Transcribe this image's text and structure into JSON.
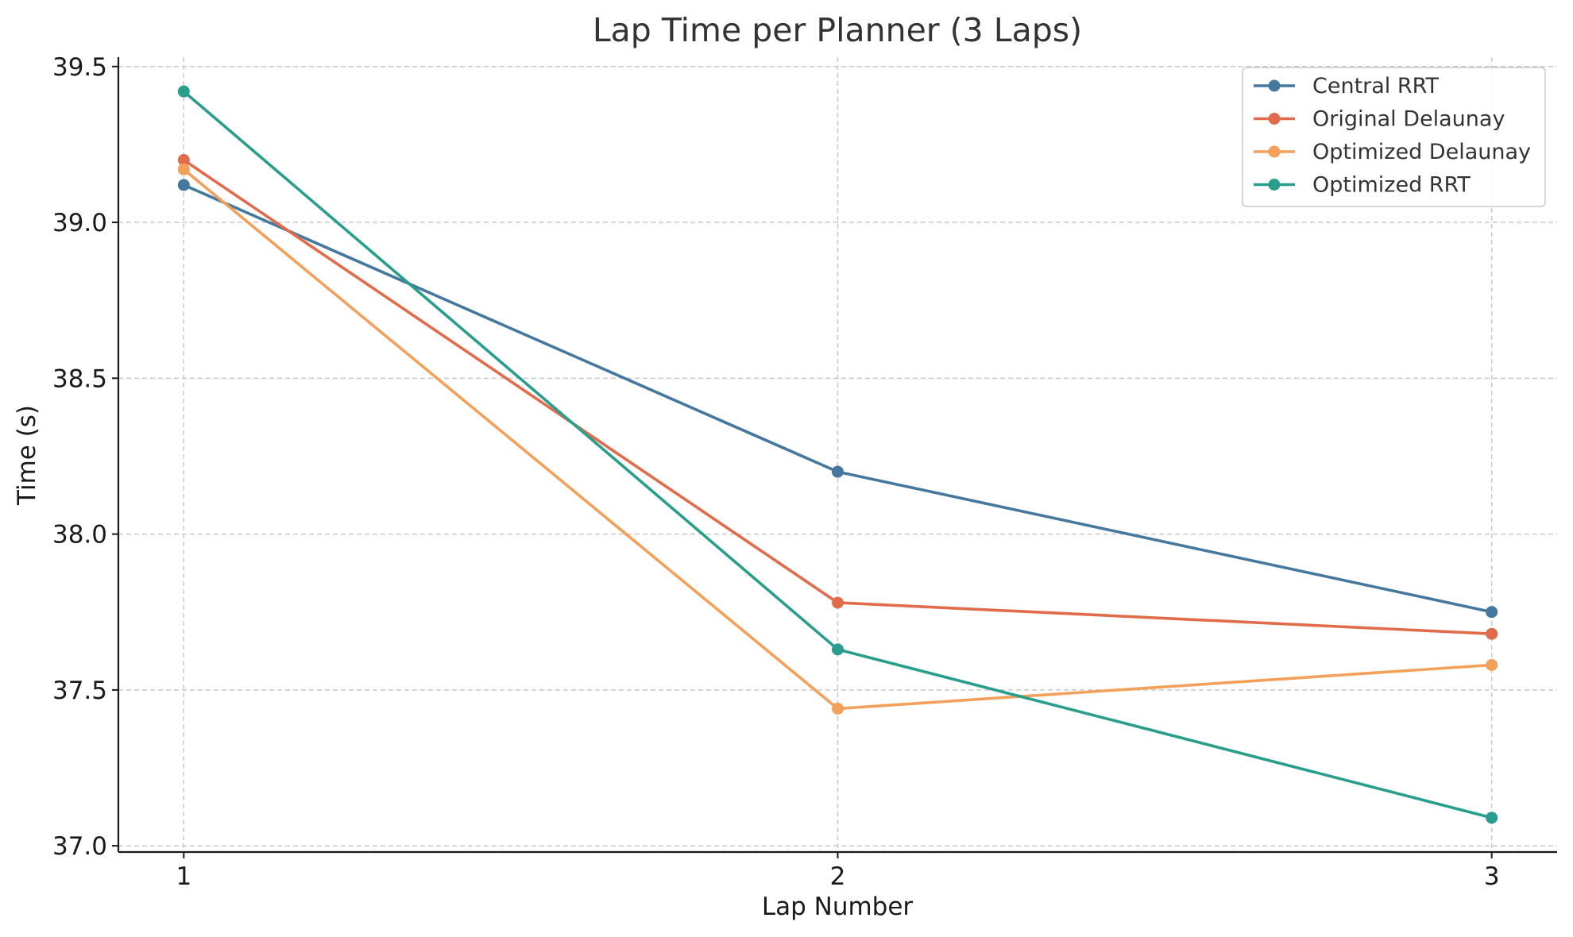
{
  "chart_data": {
    "type": "line",
    "title": "Lap Time per Planner (3 Laps)",
    "xlabel": "Lap Number",
    "ylabel": "Time (s)",
    "x": [
      1,
      2,
      3
    ],
    "x_tick_labels": [
      "1",
      "2",
      "3"
    ],
    "xlim": [
      0.9,
      3.1
    ],
    "ylim": [
      36.98,
      39.53
    ],
    "y_ticks": [
      37.0,
      37.5,
      38.0,
      38.5,
      39.0,
      39.5
    ],
    "y_tick_labels": [
      "37.0",
      "37.5",
      "38.0",
      "38.5",
      "39.0",
      "39.5"
    ],
    "grid": true,
    "legend_position": "top-right",
    "series": [
      {
        "name": "Central RRT",
        "color": "#44789e",
        "values": [
          39.12,
          38.2,
          37.75
        ]
      },
      {
        "name": "Original Delaunay",
        "color": "#e06c4c",
        "values": [
          39.2,
          37.78,
          37.68
        ]
      },
      {
        "name": "Optimized Delaunay",
        "color": "#f2a05a",
        "values": [
          39.17,
          37.44,
          37.58
        ]
      },
      {
        "name": "Optimized RRT",
        "color": "#299e8c",
        "values": [
          39.42,
          37.63,
          37.09
        ]
      }
    ]
  }
}
